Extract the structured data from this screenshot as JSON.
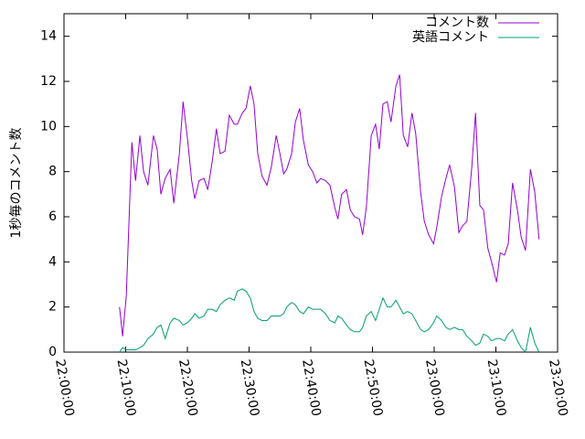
{
  "chart_data": {
    "type": "line",
    "ylabel": "1秒毎のコメント数",
    "xlim": [
      "22:00:00",
      "23:20:00"
    ],
    "xticks": [
      "22:00:00",
      "22:10:00",
      "22:20:00",
      "22:30:00",
      "22:40:00",
      "22:50:00",
      "23:00:00",
      "23:10:00",
      "23:20:00"
    ],
    "ylim": [
      0,
      15
    ],
    "yticks": [
      0,
      2,
      4,
      6,
      8,
      10,
      12,
      14
    ],
    "legend": "top-right",
    "x": [
      "22:09:00",
      "22:09:30",
      "22:10:06",
      "22:11:00",
      "22:11:36",
      "22:12:18",
      "22:12:54",
      "22:13:36",
      "22:14:30",
      "22:15:06",
      "22:15:42",
      "22:16:24",
      "22:17:12",
      "22:17:48",
      "22:18:42",
      "22:19:18",
      "22:20:00",
      "22:20:42",
      "22:21:12",
      "22:21:54",
      "22:22:42",
      "22:23:18",
      "22:24:00",
      "22:24:42",
      "22:25:18",
      "22:26:06",
      "22:26:48",
      "22:27:36",
      "22:28:06",
      "22:28:54",
      "22:29:30",
      "22:30:12",
      "22:30:48",
      "22:31:24",
      "22:32:06",
      "22:32:54",
      "22:33:36",
      "22:34:24",
      "22:35:00",
      "22:35:36",
      "22:36:06",
      "22:36:54",
      "22:37:30",
      "22:38:12",
      "22:38:48",
      "22:39:36",
      "22:40:18",
      "22:41:00",
      "22:41:36",
      "22:42:24",
      "22:43:06",
      "22:43:54",
      "22:44:24",
      "22:45:00",
      "22:45:48",
      "22:46:24",
      "22:47:06",
      "22:47:54",
      "22:48:24",
      "22:49:00",
      "22:49:48",
      "22:50:30",
      "22:51:06",
      "22:51:42",
      "22:52:24",
      "22:53:00",
      "22:53:48",
      "22:54:24",
      "22:55:00",
      "22:55:42",
      "22:56:24",
      "22:57:00",
      "22:57:48",
      "22:58:24",
      "22:59:06",
      "22:59:54",
      "23:00:24",
      "23:01:12",
      "23:01:54",
      "23:02:30",
      "23:03:18",
      "23:04:00",
      "23:04:36",
      "23:05:18",
      "23:06:06",
      "23:06:42",
      "23:07:24",
      "23:08:00",
      "23:08:42",
      "23:09:18",
      "23:10:06",
      "23:10:42",
      "23:11:24",
      "23:12:00",
      "23:12:42",
      "23:13:30",
      "23:14:06",
      "23:14:48",
      "23:15:36",
      "23:16:18",
      "23:17:00"
    ],
    "series": [
      {
        "name": "コメント数",
        "color": "#9400d3",
        "values": [
          2.0,
          0.7,
          2.5,
          9.3,
          7.6,
          9.6,
          8.0,
          7.4,
          9.6,
          9.0,
          7.0,
          7.7,
          8.1,
          6.6,
          8.8,
          11.1,
          9.5,
          7.6,
          6.8,
          7.6,
          7.7,
          7.2,
          8.4,
          9.9,
          8.8,
          8.9,
          10.5,
          10.1,
          10.1,
          10.6,
          10.8,
          11.8,
          11.0,
          8.8,
          7.8,
          7.4,
          8.2,
          9.6,
          8.8,
          7.9,
          8.1,
          8.8,
          10.2,
          10.8,
          9.4,
          8.3,
          8.0,
          7.5,
          7.7,
          7.6,
          7.4,
          6.4,
          5.9,
          7.0,
          7.2,
          6.3,
          6.0,
          5.9,
          5.2,
          6.4,
          9.6,
          10.1,
          9.0,
          11.0,
          11.1,
          10.2,
          11.8,
          12.3,
          9.6,
          9.1,
          10.6,
          9.7,
          7.1,
          5.8,
          5.2,
          4.8,
          5.5,
          6.9,
          7.7,
          8.3,
          7.3,
          5.3,
          5.6,
          5.8,
          8.2,
          10.6,
          6.5,
          6.3,
          4.6,
          4.0,
          3.1,
          4.4,
          4.3,
          4.8,
          7.5,
          6.3,
          5.1,
          4.5,
          8.1,
          7.1,
          5.0
        ]
      },
      {
        "name": "英語コメント",
        "color": "#009e73",
        "values": [
          0.0,
          0.2,
          0.1,
          0.1,
          0.1,
          0.2,
          0.3,
          0.6,
          0.8,
          1.1,
          1.2,
          0.6,
          1.3,
          1.5,
          1.4,
          1.2,
          1.3,
          1.5,
          1.7,
          1.5,
          1.6,
          1.9,
          1.9,
          1.8,
          2.1,
          2.3,
          2.4,
          2.3,
          2.7,
          2.8,
          2.7,
          2.4,
          1.8,
          1.5,
          1.4,
          1.4,
          1.6,
          1.6,
          1.6,
          1.7,
          2.0,
          2.2,
          2.1,
          1.8,
          1.7,
          2.0,
          1.9,
          1.9,
          1.9,
          1.7,
          1.4,
          1.3,
          1.6,
          1.5,
          1.2,
          1.0,
          0.9,
          0.9,
          1.1,
          1.6,
          1.8,
          1.4,
          1.9,
          2.4,
          2.0,
          2.0,
          2.3,
          2.0,
          1.7,
          1.8,
          1.7,
          1.4,
          1.0,
          0.9,
          1.0,
          1.3,
          1.6,
          1.4,
          1.1,
          1.0,
          1.1,
          1.0,
          1.0,
          0.7,
          0.5,
          0.3,
          0.4,
          0.8,
          0.7,
          0.5,
          0.6,
          0.6,
          0.5,
          0.8,
          1.0,
          0.5,
          0.2,
          0.0,
          1.1,
          0.4,
          0.0
        ]
      }
    ]
  }
}
